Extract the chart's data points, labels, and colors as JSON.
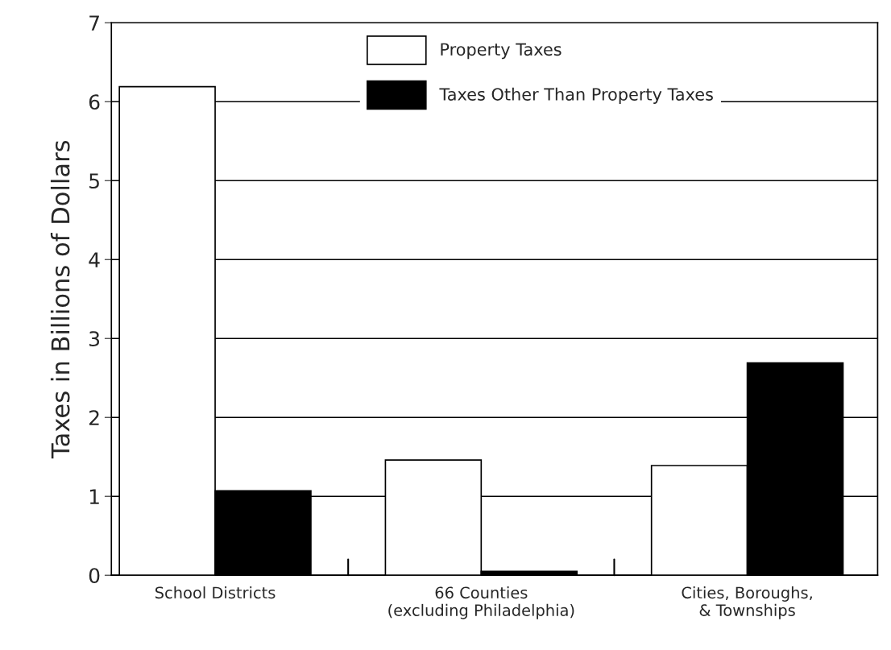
{
  "chart_data": {
    "type": "bar",
    "ylabel": "Taxes in Billions of Dollars",
    "categories": [
      "School Districts",
      "66 Counties\n(excluding Philadelphia)",
      "Cities, Boroughs,\n& Townships"
    ],
    "series": [
      {
        "name": "Property Taxes",
        "color": "#ffffff",
        "values": [
          6.19,
          1.46,
          1.39
        ]
      },
      {
        "name": "Taxes Other Than Property Taxes",
        "color": "#000000",
        "values": [
          1.07,
          0.05,
          2.69
        ]
      }
    ],
    "ylim": [
      0,
      7
    ],
    "yticks": [
      0,
      1,
      2,
      3,
      4,
      5,
      6,
      7
    ],
    "grid": "y",
    "legend": "top"
  }
}
